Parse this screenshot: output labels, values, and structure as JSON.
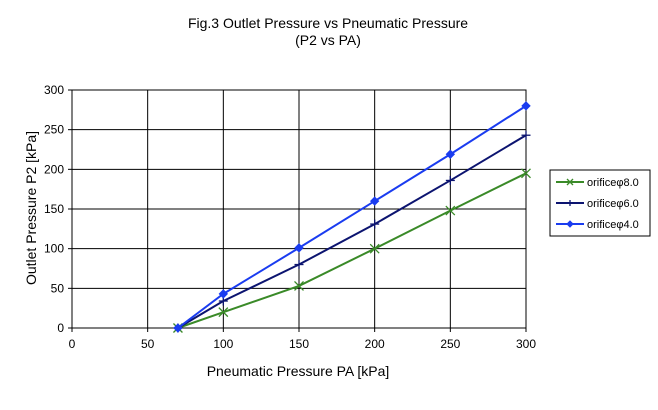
{
  "chart_data": {
    "type": "line",
    "title": "Fig.3 Outlet Pressure vs Pneumatic Pressure",
    "subtitle": "(P2 vs PA)",
    "xlabel": "Pneumatic Pressure PA [kPa]",
    "ylabel": "Outlet Pressure P2 [kPa]",
    "xlim": [
      0,
      300
    ],
    "ylim": [
      0,
      300
    ],
    "xticks": [
      0,
      50,
      100,
      150,
      200,
      250,
      300
    ],
    "yticks": [
      0,
      50,
      100,
      150,
      200,
      250,
      300
    ],
    "grid": true,
    "legend_position": "right",
    "series": [
      {
        "name": "orificeφ8.0",
        "color": "#3a8a28",
        "marker": "x",
        "x": [
          70,
          100,
          150,
          200,
          250,
          300
        ],
        "y": [
          0,
          20,
          53,
          100,
          148,
          195
        ]
      },
      {
        "name": "orificeφ6.0",
        "color": "#0c1470",
        "marker": "plus",
        "x": [
          70,
          100,
          150,
          200,
          250,
          300
        ],
        "y": [
          0,
          34,
          80,
          131,
          186,
          243
        ]
      },
      {
        "name": "orificeφ4.0",
        "color": "#1a3cf0",
        "marker": "diamond",
        "x": [
          70,
          100,
          150,
          200,
          250,
          300
        ],
        "y": [
          0,
          43,
          101,
          160,
          219,
          280
        ]
      }
    ]
  }
}
